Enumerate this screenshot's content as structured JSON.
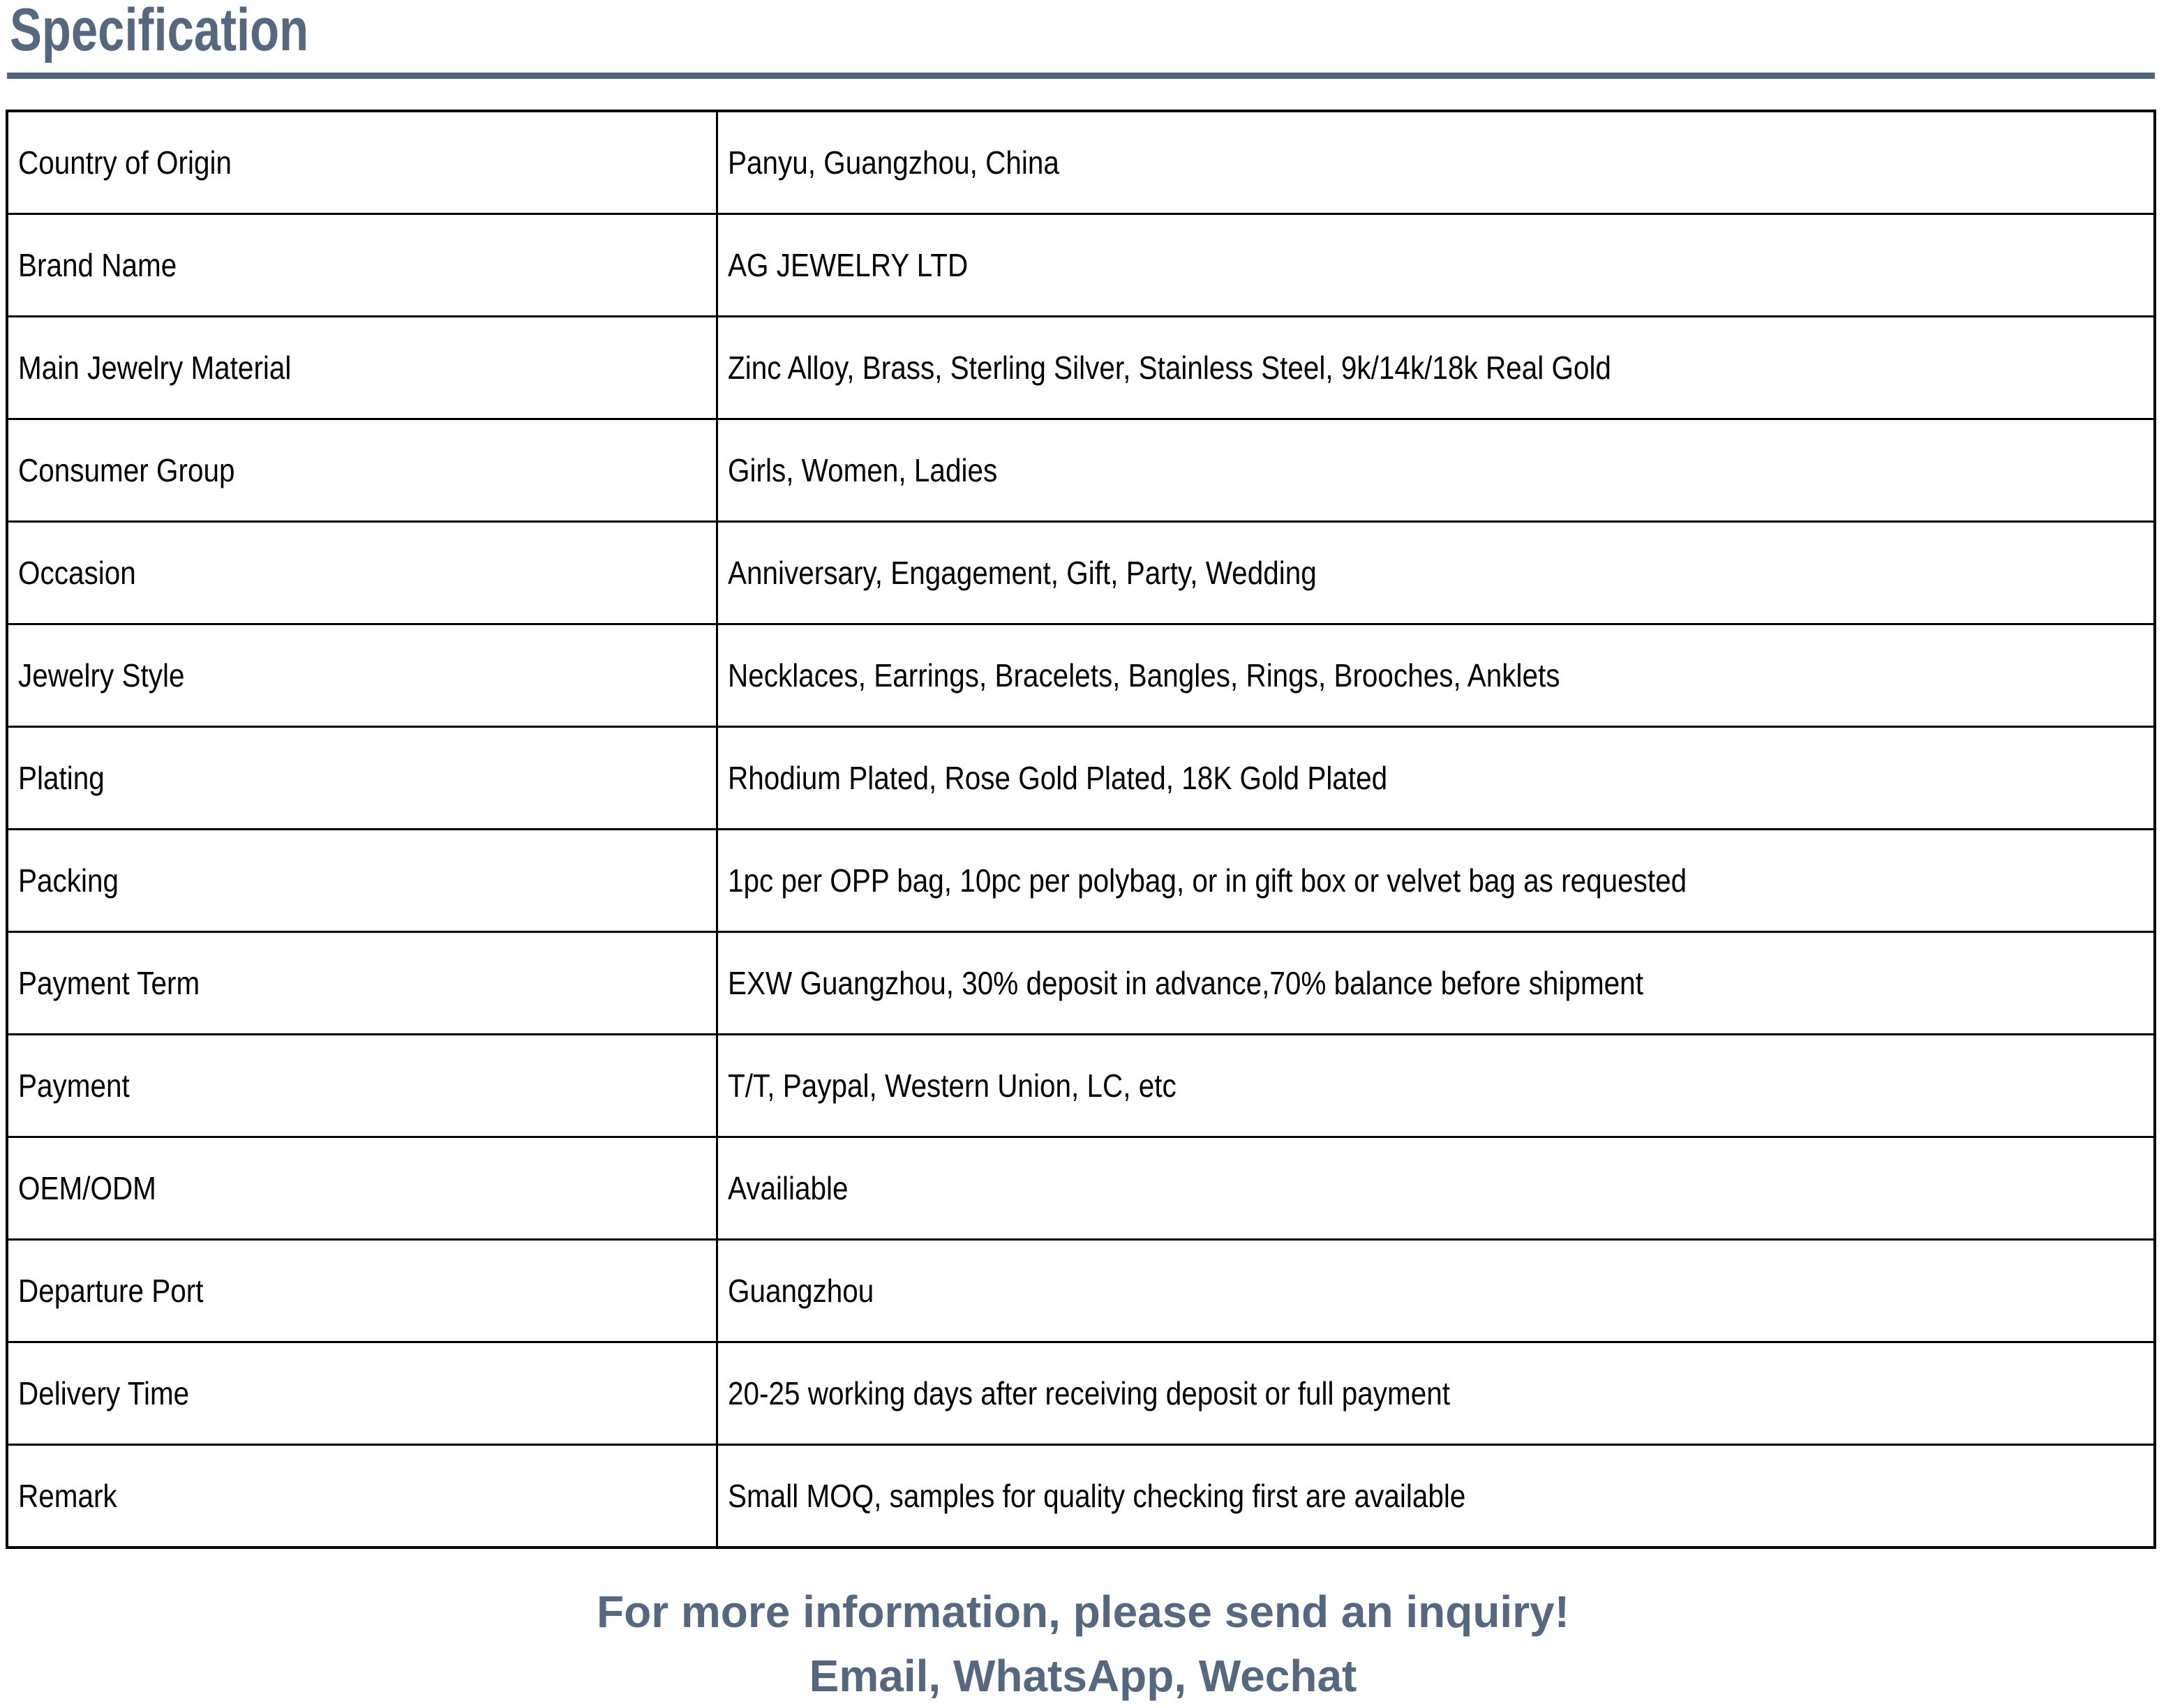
{
  "page": {
    "title": "Specification",
    "accent_color": "#56687F",
    "rule_color": "#4F627B"
  },
  "table": {
    "rows": [
      {
        "label": "Country of Origin",
        "value": "Panyu, Guangzhou, China"
      },
      {
        "label": "Brand Name",
        "value": "AG JEWELRY LTD"
      },
      {
        "label": "Main Jewelry Material",
        "value": "Zinc Alloy, Brass, Sterling Silver, Stainless Steel, 9k/14k/18k Real Gold"
      },
      {
        "label": "Consumer Group",
        "value": "Girls, Women, Ladies"
      },
      {
        "label": "Occasion",
        "value": "Anniversary, Engagement, Gift, Party, Wedding"
      },
      {
        "label": "Jewelry Style",
        "value": "Necklaces, Earrings, Bracelets, Bangles, Rings, Brooches, Anklets"
      },
      {
        "label": "Plating",
        "value": "Rhodium Plated, Rose Gold Plated, 18K Gold Plated"
      },
      {
        "label": "Packing",
        "value": "1pc per OPP bag, 10pc per polybag, or in gift box or velvet bag as requested"
      },
      {
        "label": "Payment Term",
        "value": "EXW Guangzhou, 30% deposit in advance,70% balance before shipment"
      },
      {
        "label": "Payment",
        "value": "T/T, Paypal, Western Union, LC, etc"
      },
      {
        "label": "OEM/ODM",
        "value": "Availiable"
      },
      {
        "label": "Departure Port",
        "value": "Guangzhou"
      },
      {
        "label": "Delivery Time",
        "value": "20-25 working days after receiving deposit or full payment"
      },
      {
        "label": "Remark",
        "value": "Small MOQ, samples for quality checking first are available"
      }
    ]
  },
  "footer": {
    "line1": "For more information, please send an inquiry!",
    "line2": "Email, WhatsApp, Wechat"
  }
}
